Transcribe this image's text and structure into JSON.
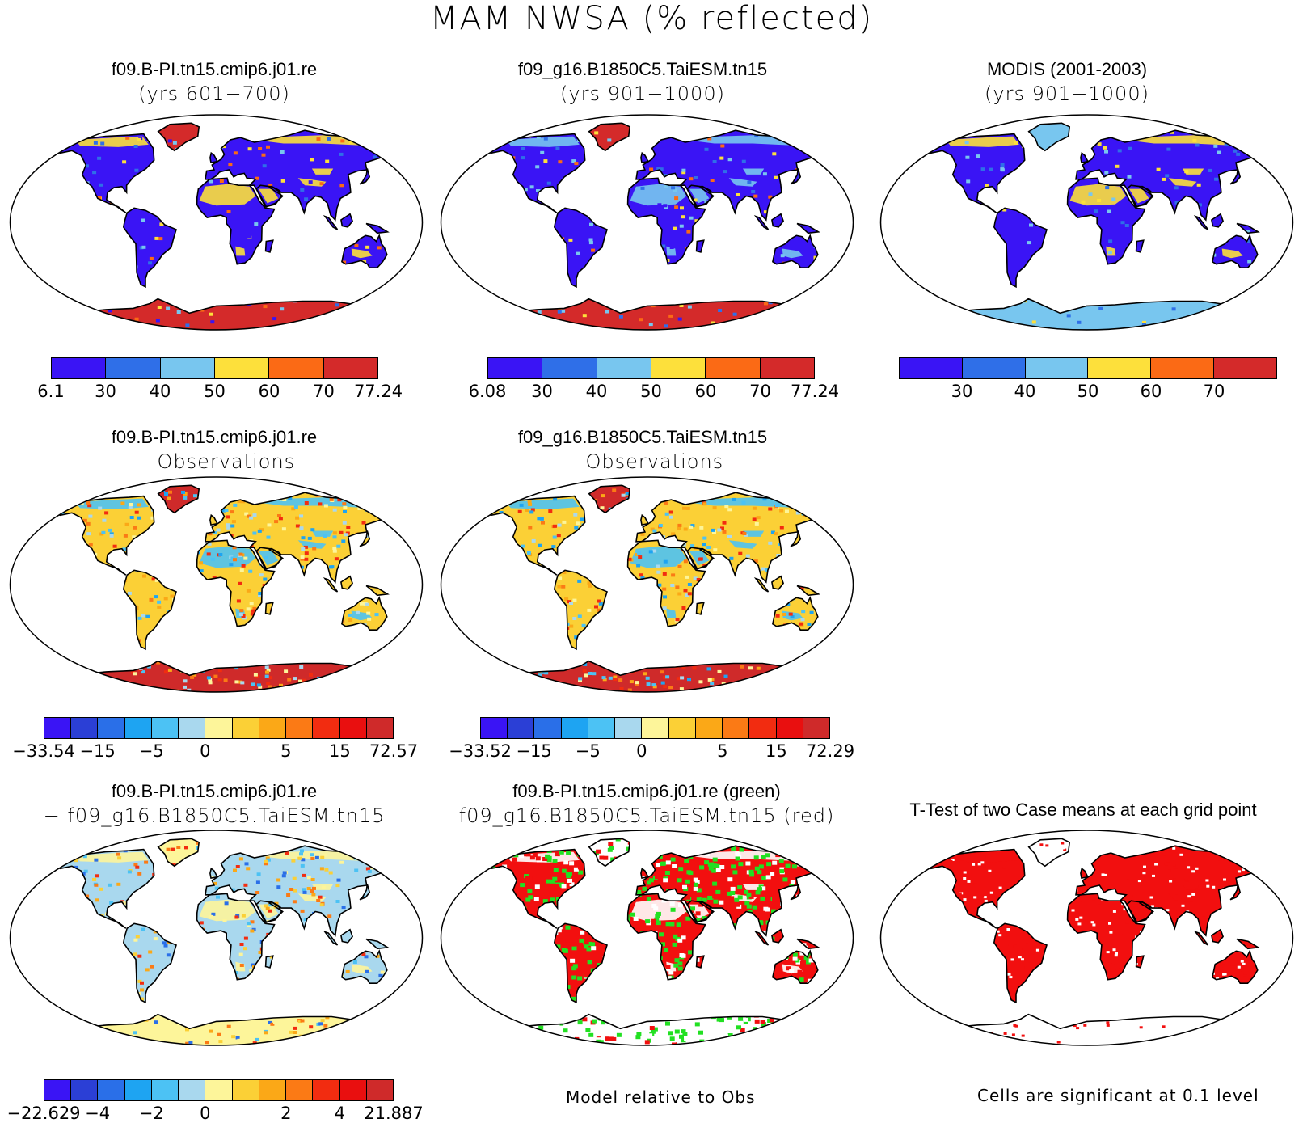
{
  "title": "MAM NWSA (% reflected)",
  "panels": {
    "p1": {
      "line1": "f09.B-PI.tn15.cmip6.j01.re",
      "line2": "(yrs 601−700)"
    },
    "p2": {
      "line1": "f09_g16.B1850C5.TaiESM.tn15",
      "line2": "(yrs 901−1000)"
    },
    "p3": {
      "line1": "MODIS (2001-2003)",
      "line2": "(yrs 901−1000)"
    },
    "p4": {
      "line1": "f09.B-PI.tn15.cmip6.j01.re",
      "line2": "− Observations"
    },
    "p5": {
      "line1": "f09_g16.B1850C5.TaiESM.tn15",
      "line2": "− Observations"
    },
    "p7": {
      "line1": "f09.B-PI.tn15.cmip6.j01.re",
      "line2": "− f09_g16.B1850C5.TaiESM.tn15"
    },
    "p8": {
      "line1": "f09.B-PI.tn15.cmip6.j01.re (green)",
      "line2": "f09_g16.B1850C5.TaiESM.tn15 (red)"
    },
    "p9": {
      "line1": "T-Test of two Case means at each grid point",
      "line2": ""
    }
  },
  "colorbars": {
    "cb1": {
      "colors": [
        "#3a14f5",
        "#2f6fe8",
        "#78c6ef",
        "#fde03b",
        "#fb6a15",
        "#d42a2a"
      ],
      "labels": [
        "6.1",
        "30",
        "40",
        "50",
        "60",
        "70",
        "77.24"
      ]
    },
    "cb2": {
      "colors": [
        "#3a14f5",
        "#2f6fe8",
        "#78c6ef",
        "#fde03b",
        "#fb6a15",
        "#d42a2a"
      ],
      "labels": [
        "6.08",
        "30",
        "40",
        "50",
        "60",
        "70",
        "77.24"
      ]
    },
    "cb3": {
      "colors": [
        "#3a14f5",
        "#2f6fe8",
        "#78c6ef",
        "#fde03b",
        "#fb6a15",
        "#d42a2a"
      ],
      "labels": [
        "30",
        "40",
        "50",
        "60",
        "70"
      ]
    },
    "cb4": {
      "colors": [
        "#3a14f5",
        "#2b3fd6",
        "#2a6fe8",
        "#1ea4f2",
        "#4cc2f4",
        "#a9d8ee",
        "#fdf59a",
        "#fbd036",
        "#fba817",
        "#fb7a15",
        "#f22c10",
        "#e90f0f",
        "#cf2a2a"
      ],
      "labels": [
        "−33.54",
        "−15",
        "−5",
        "0",
        "5",
        "15",
        "72.57"
      ]
    },
    "cb5": {
      "colors": [
        "#3a14f5",
        "#2b3fd6",
        "#2a6fe8",
        "#1ea4f2",
        "#4cc2f4",
        "#a9d8ee",
        "#fdf59a",
        "#fbd036",
        "#fba817",
        "#fb7a15",
        "#f22c10",
        "#e90f0f",
        "#cf2a2a"
      ],
      "labels": [
        "−33.52",
        "−15",
        "−5",
        "0",
        "5",
        "15",
        "72.29"
      ]
    },
    "cb7": {
      "colors": [
        "#3a14f5",
        "#2b3fd6",
        "#2a6fe8",
        "#1ea4f2",
        "#4cc2f4",
        "#a9d8ee",
        "#fdf59a",
        "#fbd036",
        "#fba817",
        "#fb7a15",
        "#f22c10",
        "#e90f0f",
        "#cf2a2a"
      ],
      "labels": [
        "−22.629",
        "−4",
        "−2",
        "0",
        "2",
        "4",
        "21.887"
      ]
    }
  },
  "footnotes": {
    "model_rel": "Model relative to Obs",
    "sig": "Cells are significant at 0.1 level"
  },
  "palettes": {
    "abs_land": "#3a14f5",
    "diff_land": "#fbd036",
    "diff2_land": "#a9d8ee",
    "green": "#22e022",
    "red": "#f20f0f"
  }
}
